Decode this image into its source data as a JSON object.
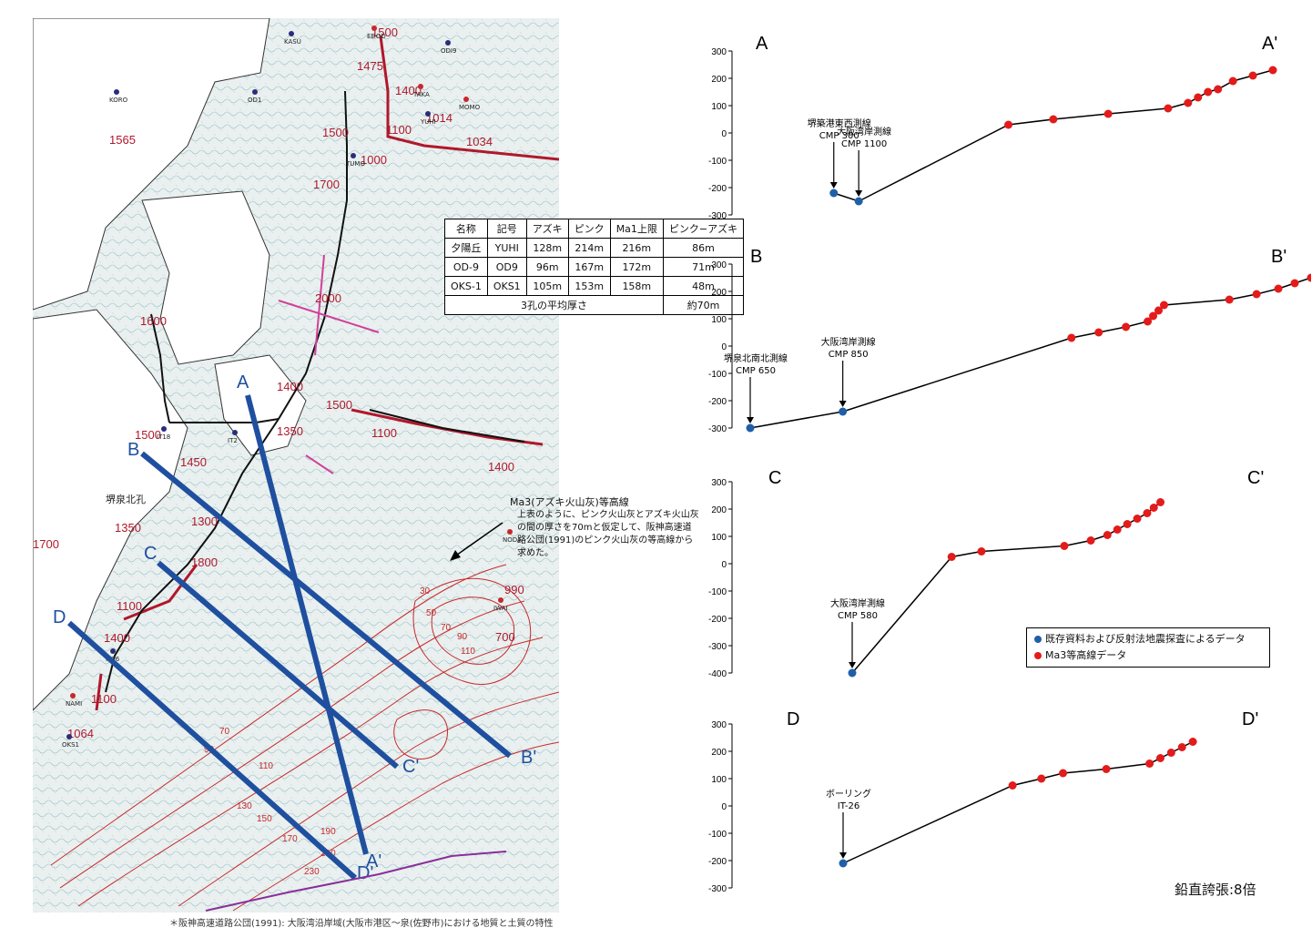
{
  "map": {
    "table": {
      "headers": [
        "名称",
        "記号",
        "アズキ",
        "ピンク",
        "Ma1上限",
        "ピンク−アズキ"
      ],
      "rows": [
        [
          "夕陽丘",
          "YUHI",
          "128m",
          "214m",
          "216m",
          "86m"
        ],
        [
          "OD-9",
          "OD9",
          "96m",
          "167m",
          "172m",
          "71m"
        ],
        [
          "OKS-1",
          "OKS1",
          "105m",
          "153m",
          "158m",
          "48m"
        ]
      ],
      "avg_label": "3孔の平均厚さ",
      "avg_value": "約70m"
    },
    "ma3_label": "Ma3(アズキ火山灰)等高線",
    "ma3_note": "上表のように、ピンク火山灰とアズキ火山灰の間の厚さを70mと仮定して、阪神高速道路公団(1991)のピンク火山灰の等高線から求めた。",
    "footnote": "＊阪神高速道路公団(1991): 大阪湾沿岸域(大阪市港区〜泉(佐野市)における地質と土質の特性",
    "depth_labels": [
      "1500",
      "1475",
      "1400",
      "1100",
      "1014",
      "1034",
      "1565",
      "1500",
      "1000",
      "1700",
      "2000",
      "1600",
      "1500",
      "1400",
      "1500",
      "1350",
      "1100",
      "1400",
      "1450",
      "1300",
      "1350",
      "1800",
      "1700",
      "1100",
      "1400",
      "1100",
      "1064",
      "990",
      "700"
    ],
    "contour_labels": [
      "30",
      "50",
      "70",
      "90",
      "110",
      "70",
      "90",
      "110",
      "130",
      "150",
      "170",
      "190",
      "210",
      "230"
    ],
    "site_labels": [
      "KORO",
      "OD1",
      "KASU",
      "EDOD",
      "ODI9",
      "TAKA",
      "YUHI",
      "MOMO",
      "TUMO",
      "OD7",
      "IT18",
      "IT2",
      "IT26",
      "NAMI",
      "OKS1",
      "NODA",
      "IWAI",
      "堺泉北孔"
    ],
    "section_lines": [
      {
        "start": "A",
        "end": "A'"
      },
      {
        "start": "B",
        "end": "B'"
      },
      {
        "start": "C",
        "end": "C'"
      },
      {
        "start": "D",
        "end": "D'"
      }
    ]
  },
  "colors": {
    "section_line": "#1f4f9f",
    "blue_point": "#1f5fa8",
    "red_point": "#e31b1b",
    "contour": "#c8282c",
    "seismic_line": "#c8283c",
    "pink": "#d1409a"
  },
  "profiles": [
    {
      "id": "A",
      "title_left": "A",
      "title_right": "A'",
      "y_ticks": [
        "300",
        "200",
        "100",
        "0",
        "-100",
        "-200",
        "-300"
      ],
      "ylim": [
        -300,
        300
      ],
      "points": [
        {
          "x": 0.12,
          "y": -220,
          "color": "blue"
        },
        {
          "x": 0.17,
          "y": -250,
          "color": "blue"
        },
        {
          "x": 0.47,
          "y": 30,
          "color": "red"
        },
        {
          "x": 0.56,
          "y": 50,
          "color": "red"
        },
        {
          "x": 0.67,
          "y": 70,
          "color": "red"
        },
        {
          "x": 0.79,
          "y": 90,
          "color": "red"
        },
        {
          "x": 0.83,
          "y": 110,
          "color": "red"
        },
        {
          "x": 0.85,
          "y": 130,
          "color": "red"
        },
        {
          "x": 0.87,
          "y": 150,
          "color": "red"
        },
        {
          "x": 0.89,
          "y": 160,
          "color": "red"
        },
        {
          "x": 0.92,
          "y": 190,
          "color": "red"
        },
        {
          "x": 0.96,
          "y": 210,
          "color": "red"
        },
        {
          "x": 1.0,
          "y": 230,
          "color": "red"
        }
      ],
      "annotations": [
        {
          "text": [
            "堺築港東西測線",
            "CMP 300"
          ],
          "point": 0
        },
        {
          "text": [
            "大阪湾岸測線",
            "CMP 1100"
          ],
          "point": 1
        }
      ]
    },
    {
      "id": "B",
      "title_left": "B",
      "title_right": "B'",
      "y_ticks": [
        "300",
        "200",
        "100",
        "0",
        "-100",
        "-200",
        "-300"
      ],
      "ylim": [
        -300,
        300
      ],
      "points": [
        {
          "x": 0.0,
          "y": -300,
          "color": "blue"
        },
        {
          "x": 0.17,
          "y": -240,
          "color": "blue"
        },
        {
          "x": 0.59,
          "y": 30,
          "color": "red"
        },
        {
          "x": 0.64,
          "y": 50,
          "color": "red"
        },
        {
          "x": 0.69,
          "y": 70,
          "color": "red"
        },
        {
          "x": 0.73,
          "y": 90,
          "color": "red"
        },
        {
          "x": 0.74,
          "y": 110,
          "color": "red"
        },
        {
          "x": 0.75,
          "y": 130,
          "color": "red"
        },
        {
          "x": 0.76,
          "y": 150,
          "color": "red"
        },
        {
          "x": 0.88,
          "y": 170,
          "color": "red"
        },
        {
          "x": 0.93,
          "y": 190,
          "color": "red"
        },
        {
          "x": 0.97,
          "y": 210,
          "color": "red"
        },
        {
          "x": 1.0,
          "y": 230,
          "color": "red"
        },
        {
          "x": 1.03,
          "y": 250,
          "color": "red"
        }
      ],
      "annotations": [
        {
          "text": [
            "堺泉北南北測線",
            "CMP 650"
          ],
          "point": 0
        },
        {
          "text": [
            "大阪湾岸測線",
            "CMP 850"
          ],
          "point": 1
        }
      ]
    },
    {
      "id": "C",
      "title_left": "C",
      "title_right": "C'",
      "y_ticks": [
        "300",
        "200",
        "100",
        "0",
        "-100",
        "-200",
        "-300",
        "-400"
      ],
      "ylim": [
        -400,
        300
      ],
      "points": [
        {
          "x": 0.0,
          "y": -400,
          "color": "blue"
        },
        {
          "x": 0.3,
          "y": 25,
          "color": "red"
        },
        {
          "x": 0.39,
          "y": 45,
          "color": "red"
        },
        {
          "x": 0.64,
          "y": 65,
          "color": "red"
        },
        {
          "x": 0.72,
          "y": 85,
          "color": "red"
        },
        {
          "x": 0.77,
          "y": 105,
          "color": "red"
        },
        {
          "x": 0.8,
          "y": 125,
          "color": "red"
        },
        {
          "x": 0.83,
          "y": 145,
          "color": "red"
        },
        {
          "x": 0.86,
          "y": 165,
          "color": "red"
        },
        {
          "x": 0.89,
          "y": 185,
          "color": "red"
        },
        {
          "x": 0.91,
          "y": 205,
          "color": "red"
        },
        {
          "x": 0.93,
          "y": 225,
          "color": "red"
        }
      ],
      "annotations": [
        {
          "text": [
            "大阪湾岸測線",
            "CMP 580"
          ],
          "point": 0
        }
      ]
    },
    {
      "id": "D",
      "title_left": "D",
      "title_right": "D'",
      "y_ticks": [
        "300",
        "200",
        "100",
        "0",
        "-100",
        "-200",
        "-300"
      ],
      "ylim": [
        -300,
        300
      ],
      "points": [
        {
          "x": 0.0,
          "y": -210,
          "color": "blue"
        },
        {
          "x": 0.47,
          "y": 75,
          "color": "red"
        },
        {
          "x": 0.55,
          "y": 100,
          "color": "red"
        },
        {
          "x": 0.61,
          "y": 120,
          "color": "red"
        },
        {
          "x": 0.73,
          "y": 135,
          "color": "red"
        },
        {
          "x": 0.85,
          "y": 155,
          "color": "red"
        },
        {
          "x": 0.88,
          "y": 175,
          "color": "red"
        },
        {
          "x": 0.91,
          "y": 195,
          "color": "red"
        },
        {
          "x": 0.94,
          "y": 215,
          "color": "red"
        },
        {
          "x": 0.97,
          "y": 235,
          "color": "red"
        }
      ],
      "annotations": [
        {
          "text": [
            "ボーリング",
            "IT-26"
          ],
          "point": 0
        }
      ]
    }
  ],
  "legend": {
    "blue_label": "既存資料および反射法地震探査によるデータ",
    "red_label": "Ma3等高線データ"
  },
  "vertical_exaggeration": "鉛直誇張:8倍"
}
